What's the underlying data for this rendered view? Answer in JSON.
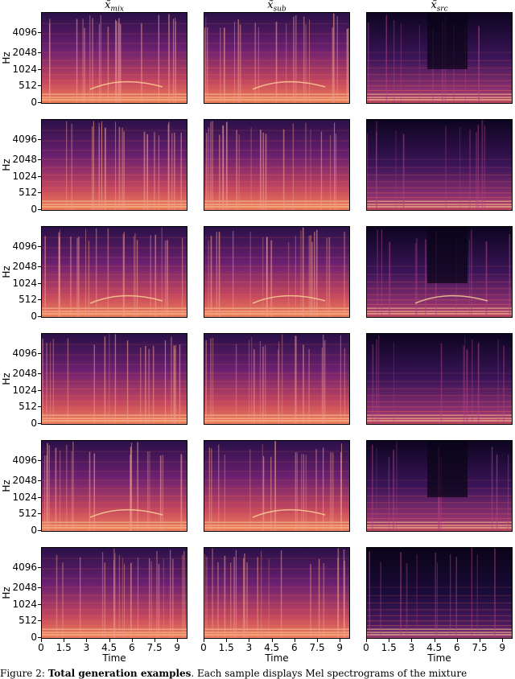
{
  "columns": [
    {
      "base": "x̃",
      "sub": "mix"
    },
    {
      "base": "x̃",
      "sub": "sub"
    },
    {
      "base": "x̃",
      "sub": "src"
    }
  ],
  "y_axis": {
    "label": "Hz",
    "ticks": [
      "4096",
      "2048",
      "1024",
      "512",
      "0"
    ]
  },
  "x_axis": {
    "label": "Time",
    "ticks": [
      "0",
      "1.5",
      "3",
      "4.5",
      "6",
      "7.5",
      "9"
    ]
  },
  "rows": [
    {
      "id": 1,
      "src_style": "sparse-harmonic"
    },
    {
      "id": 2,
      "src_style": "dark-vertical"
    },
    {
      "id": 3,
      "src_style": "sweep"
    },
    {
      "id": 4,
      "src_style": "dark-vertical"
    },
    {
      "id": 5,
      "src_style": "sparse-harmonic"
    },
    {
      "id": 6,
      "src_style": "dark-low"
    }
  ],
  "caption": {
    "prefix": "Figure 2: ",
    "bold": "Total generation examples",
    "rest": ". Each sample displays Mel spectrograms of the mixture"
  },
  "colors": {
    "dark": "#1a0b3a",
    "mid": "#7a2a7a",
    "bright": "#e8604a",
    "hot": "#fbd49a"
  }
}
